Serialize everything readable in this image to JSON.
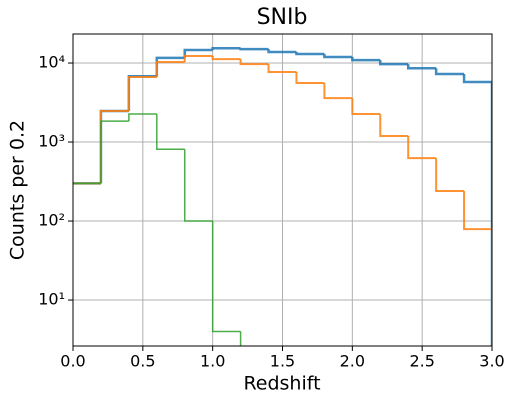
{
  "chart_data": {
    "type": "histogram_step",
    "title": "SNIb",
    "xlabel": "Redshift",
    "ylabel": "Counts per 0.2",
    "log_y": true,
    "grid": true,
    "bins": [
      0.0,
      0.2,
      0.4,
      0.6,
      0.8,
      1.0,
      1.2,
      1.4,
      1.6,
      1.8,
      2.0,
      2.2,
      2.4,
      2.6,
      2.8,
      3.0
    ],
    "series": [
      {
        "color": "#1f77b4",
        "values": [
          300,
          2470,
          6800,
          11600,
          14600,
          15400,
          15000,
          13800,
          13000,
          11900,
          10900,
          9700,
          8600,
          7260,
          5750
        ]
      },
      {
        "color": "#ff7f0e",
        "values": [
          300,
          2470,
          6650,
          10300,
          12250,
          11200,
          9700,
          7690,
          5580,
          3600,
          2260,
          1190,
          626,
          240,
          79
        ]
      },
      {
        "color": "#2ca02c",
        "values": [
          300,
          1840,
          2260,
          810,
          100,
          4,
          0,
          0,
          0,
          0,
          0,
          0,
          0,
          0,
          0
        ]
      }
    ],
    "xlim": [
      0.0,
      3.0
    ],
    "xticks": [
      {
        "value": 0,
        "label": "0.0"
      },
      0.5,
      {
        "value": 1,
        "label": "1.0"
      },
      1.5,
      {
        "value": 2,
        "label": "2.0"
      },
      2.5,
      {
        "value": 3,
        "label": "3.0"
      }
    ],
    "ylim": [
      2.62,
      23300
    ],
    "yticks": [
      {
        "value": 10,
        "label": "10¹"
      },
      {
        "value": 100,
        "label": "10²"
      },
      {
        "value": 1000,
        "label": "10³"
      },
      {
        "value": 10000,
        "label": "10⁴"
      }
    ]
  }
}
